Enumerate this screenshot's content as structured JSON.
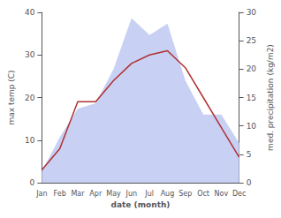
{
  "chart_data": {
    "type": "line",
    "xlabel": "date (month)",
    "ylabel": "max temp (C)",
    "y2label": "med. precipitation (kg/m2)",
    "categories": [
      "Jan",
      "Feb",
      "Mar",
      "Apr",
      "May",
      "Jun",
      "Jul",
      "Aug",
      "Sep",
      "Oct",
      "Nov",
      "Dec"
    ],
    "series": [
      {
        "type": "area",
        "color": "#c8d0f4",
        "axis": "y2",
        "values": [
          2,
          8,
          13,
          14,
          20,
          29,
          26,
          28,
          18,
          12,
          12,
          7
        ]
      },
      {
        "type": "line",
        "color": "#b03030",
        "values": [
          3,
          8,
          19,
          19,
          24,
          28,
          30,
          31,
          27,
          20,
          13,
          6
        ]
      }
    ],
    "ylim": [
      0,
      40
    ],
    "yticks": [
      0,
      10,
      20,
      30,
      40
    ],
    "y2lim": [
      0,
      30
    ],
    "y2ticks": [
      0,
      5,
      10,
      15,
      20,
      25,
      30
    ],
    "grid": false
  }
}
